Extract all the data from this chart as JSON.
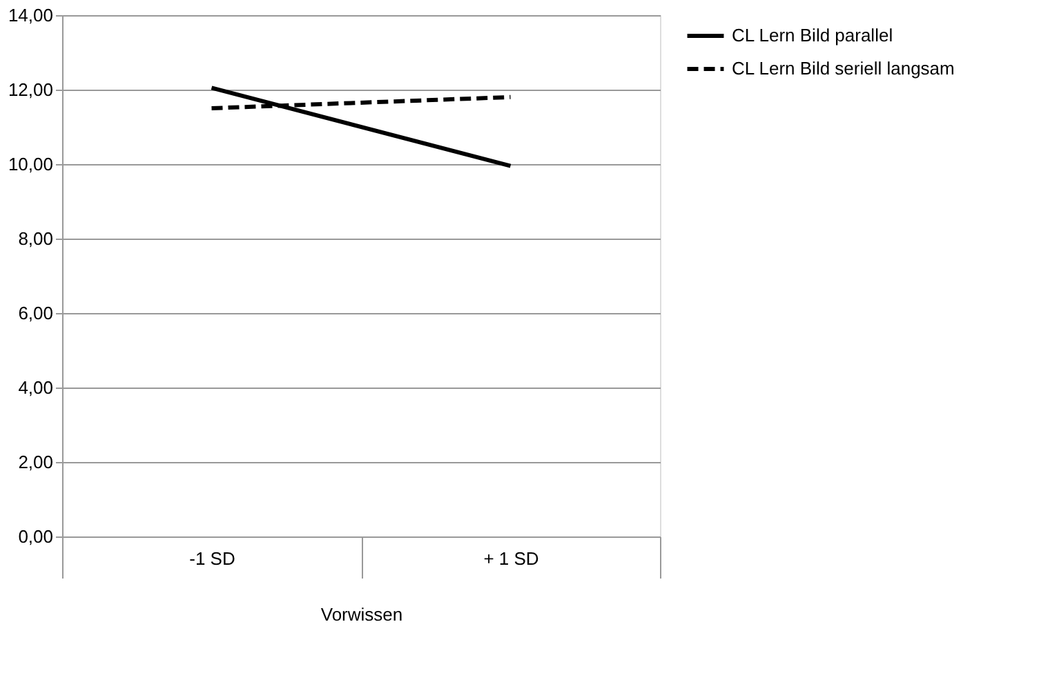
{
  "chart_data": {
    "type": "line",
    "categories": [
      "-1 SD",
      "+ 1 SD"
    ],
    "xlabel": "Vorwissen",
    "series": [
      {
        "name": "CL Lern Bild parallel",
        "color": "#000000",
        "line_style": "solid",
        "values": [
          12.05,
          9.95
        ]
      },
      {
        "name": "CL Lern Bild seriell langsam",
        "color": "#000000",
        "line_style": "dashed",
        "values": [
          11.5,
          11.8
        ]
      }
    ],
    "ylim": [
      0,
      14
    ],
    "yticks": [
      {
        "value": 0,
        "label": "0,00"
      },
      {
        "value": 2,
        "label": "2,00"
      },
      {
        "value": 4,
        "label": "4,00"
      },
      {
        "value": 6,
        "label": "6,00"
      },
      {
        "value": 8,
        "label": "8,00"
      },
      {
        "value": 10,
        "label": "10,00"
      },
      {
        "value": 12,
        "label": "12,00"
      },
      {
        "value": 14,
        "label": "14,00"
      }
    ],
    "grid": "y",
    "legend": "right",
    "marker": "none"
  }
}
